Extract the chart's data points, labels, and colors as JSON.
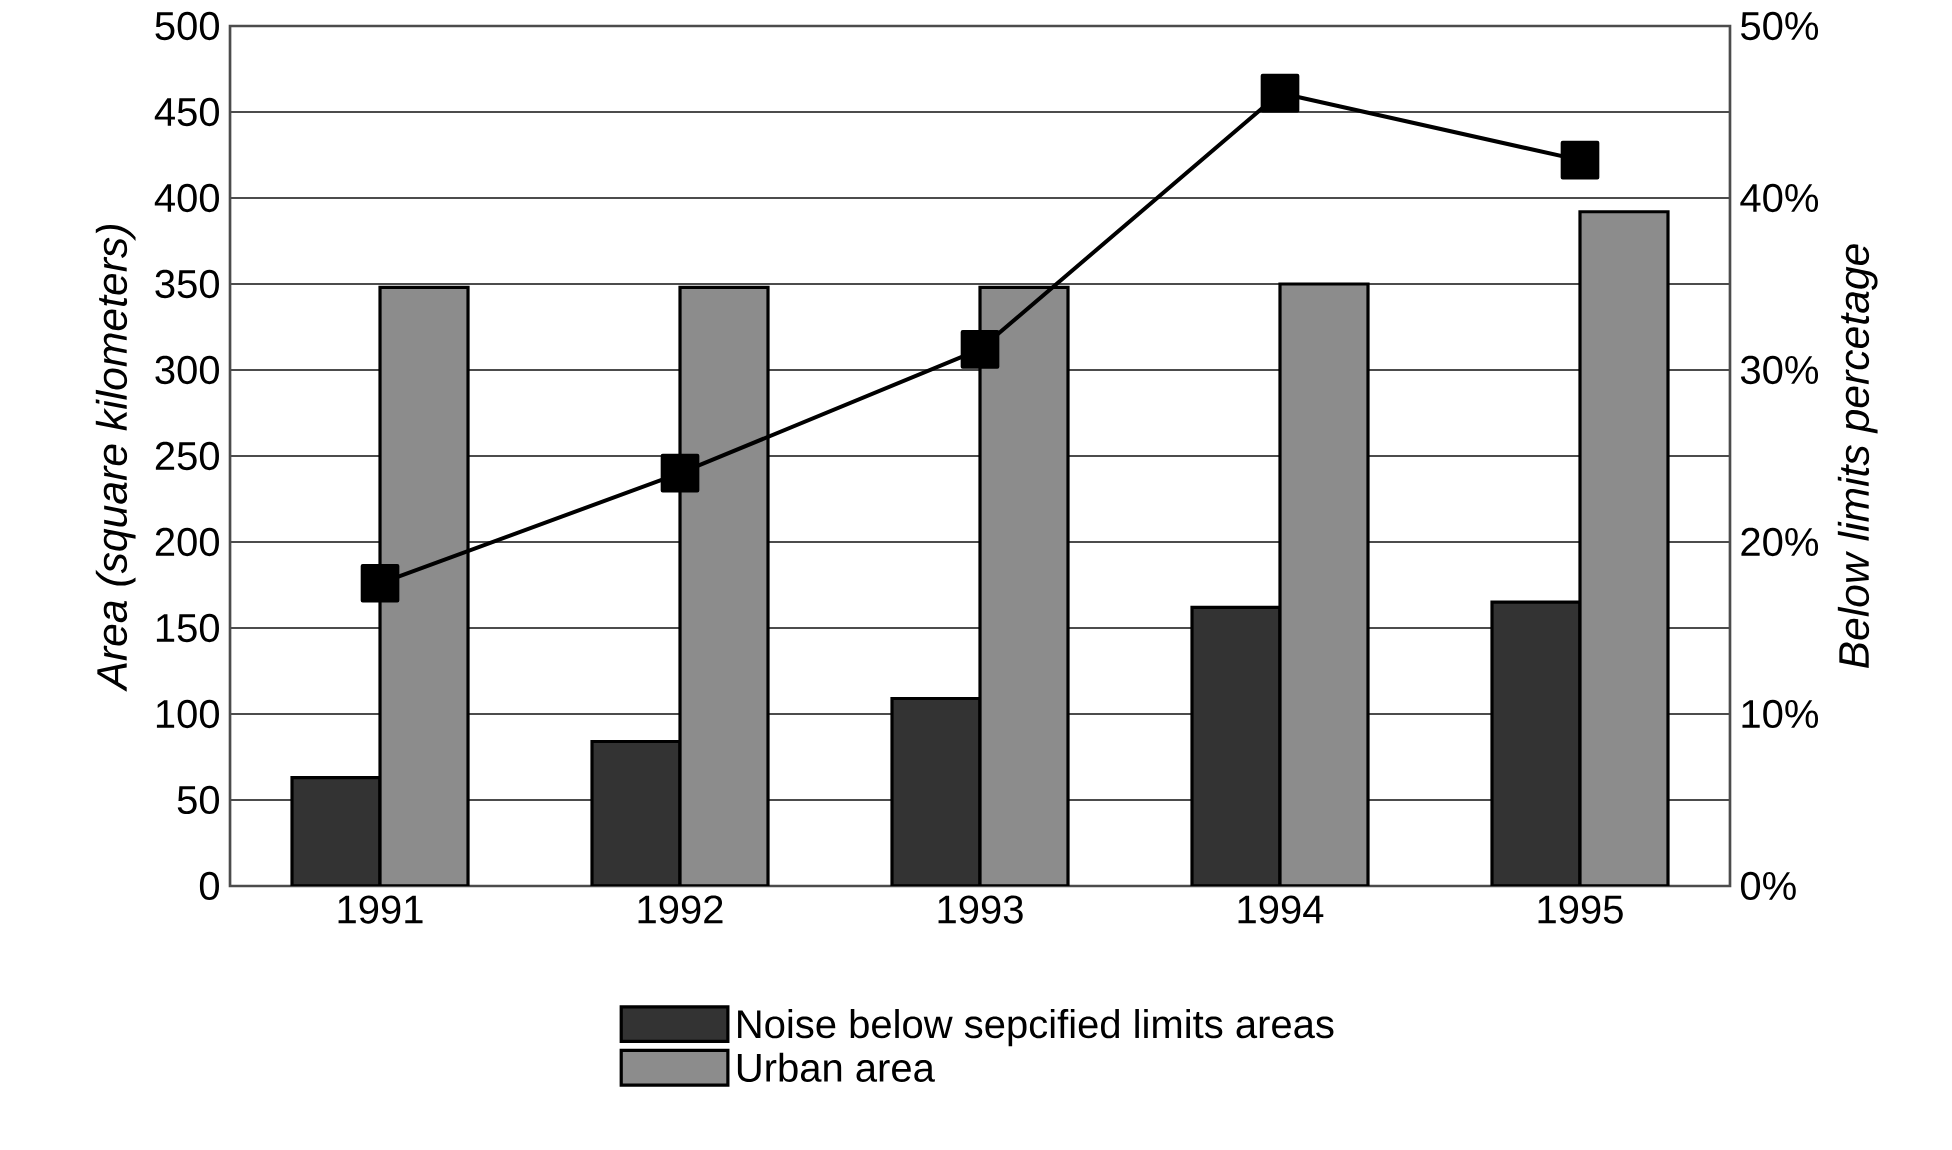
{
  "chart_data": {
    "type": "bar",
    "categories": [
      "1991",
      "1992",
      "1993",
      "1994",
      "1995"
    ],
    "ylabel": "Area (square kilometers)",
    "y2label": "Below limits percetage",
    "ylim": [
      0,
      500
    ],
    "yticks": [
      0,
      50,
      100,
      150,
      200,
      250,
      300,
      350,
      400,
      450,
      500
    ],
    "y2lim": [
      0,
      50
    ],
    "y2ticks": [
      {
        "value": 0,
        "label": "0%"
      },
      {
        "value": 10,
        "label": "10%"
      },
      {
        "value": 20,
        "label": "20%"
      },
      {
        "value": 30,
        "label": "30%"
      },
      {
        "value": 40,
        "label": "40%"
      },
      {
        "value": 50,
        "label": "50%"
      }
    ],
    "grid": "y",
    "legend": "bottom",
    "series": [
      {
        "name": "Noise below sepcified limits areas",
        "color": "#333333",
        "values": [
          63,
          84,
          109,
          162,
          165
        ]
      },
      {
        "name": "Urban area",
        "color": "#8c8c8c",
        "values": [
          348,
          348,
          348,
          350,
          392
        ]
      },
      {
        "type": "line",
        "axis": "y2",
        "color": "#000000",
        "marker": "square",
        "values": [
          17.6,
          24,
          31.2,
          46.1,
          42.2
        ]
      }
    ]
  }
}
